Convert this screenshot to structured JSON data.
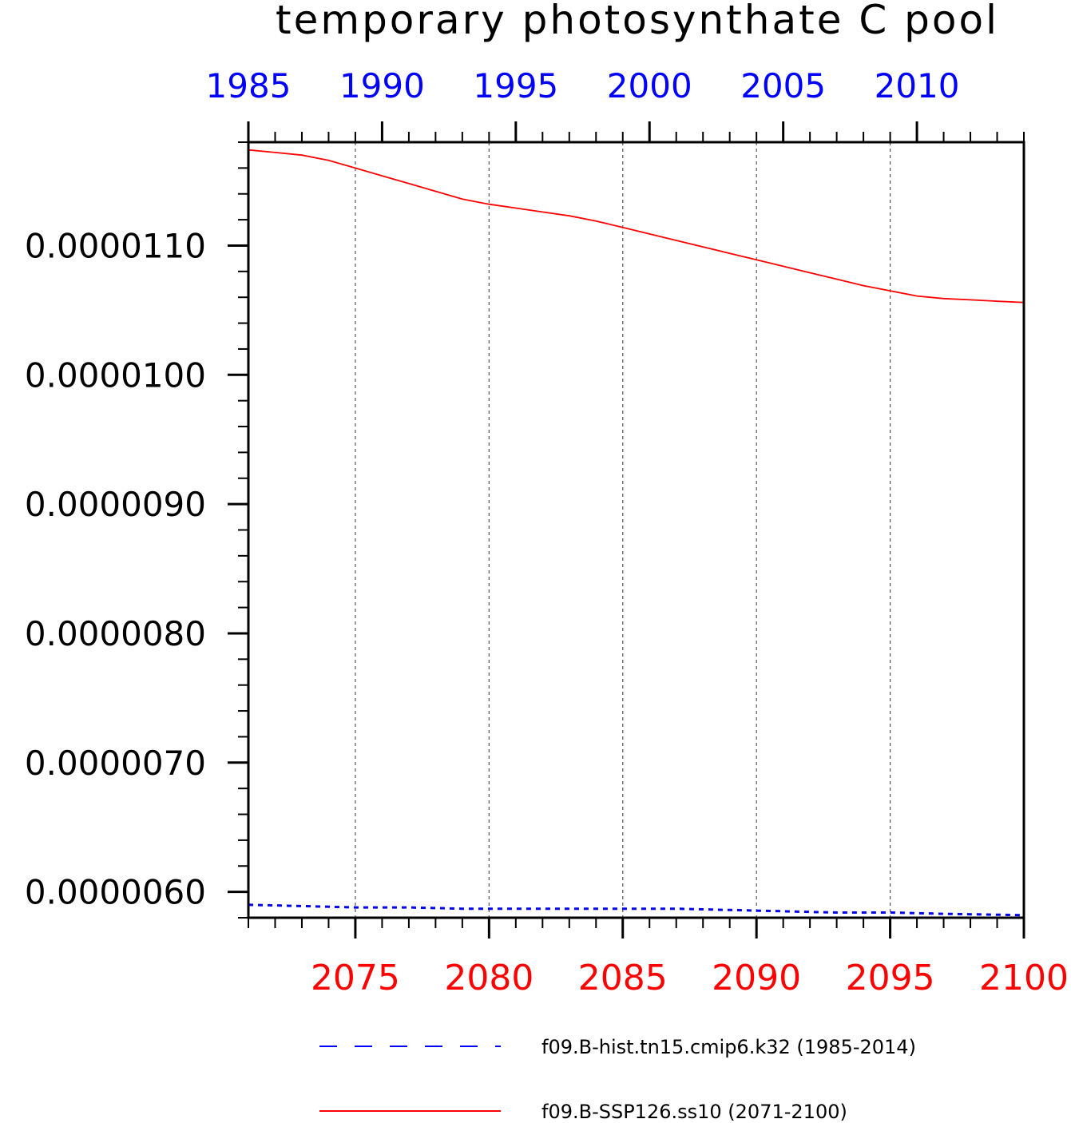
{
  "chart_data": {
    "type": "line",
    "title": "temporary photosynthate C pool",
    "xlabel": "",
    "ylabel": "",
    "ylim": [
      5.8e-06,
      1.18e-05
    ],
    "y_ticks": [
      "0.0000060",
      "0.0000070",
      "0.0000080",
      "0.0000090",
      "0.0000100",
      "0.0000110"
    ],
    "y_tick_values": [
      6e-06,
      7e-06,
      8e-06,
      9e-06,
      1e-05,
      1.1e-05
    ],
    "top_axis": {
      "color": "#0000ff",
      "xlim": [
        1985,
        2014
      ],
      "ticks": [
        1985,
        1990,
        1995,
        2000,
        2005,
        2010
      ],
      "tick_labels": [
        "1985",
        "1990",
        "1995",
        "2000",
        "2005",
        "2010"
      ]
    },
    "bottom_axis": {
      "color": "#ff0000",
      "xlim": [
        2071,
        2100
      ],
      "ticks": [
        2075,
        2080,
        2085,
        2090,
        2095,
        2100
      ],
      "tick_labels": [
        "2075",
        "2080",
        "2085",
        "2090",
        "2095",
        "2100"
      ]
    },
    "grid": "vertical-dashed",
    "legend_position": "bottom",
    "series": [
      {
        "name": "f09.B-hist.tn15.cmip6.k32 (1985-2014)",
        "axis": "top",
        "color": "#0000ff",
        "style": "dashed",
        "x": [
          1985,
          1987,
          1989,
          1991,
          1993,
          1995,
          1997,
          1999,
          2001,
          2003,
          2005,
          2007,
          2009,
          2011,
          2014
        ],
        "values": [
          5.9e-06,
          5.89e-06,
          5.88e-06,
          5.88e-06,
          5.87e-06,
          5.87e-06,
          5.87e-06,
          5.87e-06,
          5.87e-06,
          5.86e-06,
          5.85e-06,
          5.84e-06,
          5.84e-06,
          5.83e-06,
          5.82e-06
        ]
      },
      {
        "name": "f09.B-SSP126.ss10 (2071-2100)",
        "axis": "bottom",
        "color": "#ff0000",
        "style": "solid",
        "x": [
          2071,
          2072,
          2073,
          2074,
          2075,
          2076,
          2077,
          2078,
          2079,
          2080,
          2081,
          2082,
          2083,
          2084,
          2085,
          2086,
          2087,
          2088,
          2089,
          2090,
          2091,
          2092,
          2093,
          2094,
          2095,
          2096,
          2097,
          2098,
          2099,
          2100
        ],
        "values": [
          1.174e-05,
          1.172e-05,
          1.17e-05,
          1.166e-05,
          1.16e-05,
          1.154e-05,
          1.148e-05,
          1.142e-05,
          1.136e-05,
          1.132e-05,
          1.129e-05,
          1.126e-05,
          1.123e-05,
          1.119e-05,
          1.114e-05,
          1.109e-05,
          1.104e-05,
          1.099e-05,
          1.094e-05,
          1.089e-05,
          1.084e-05,
          1.079e-05,
          1.074e-05,
          1.069e-05,
          1.065e-05,
          1.061e-05,
          1.059e-05,
          1.058e-05,
          1.057e-05,
          1.056e-05
        ]
      }
    ]
  }
}
